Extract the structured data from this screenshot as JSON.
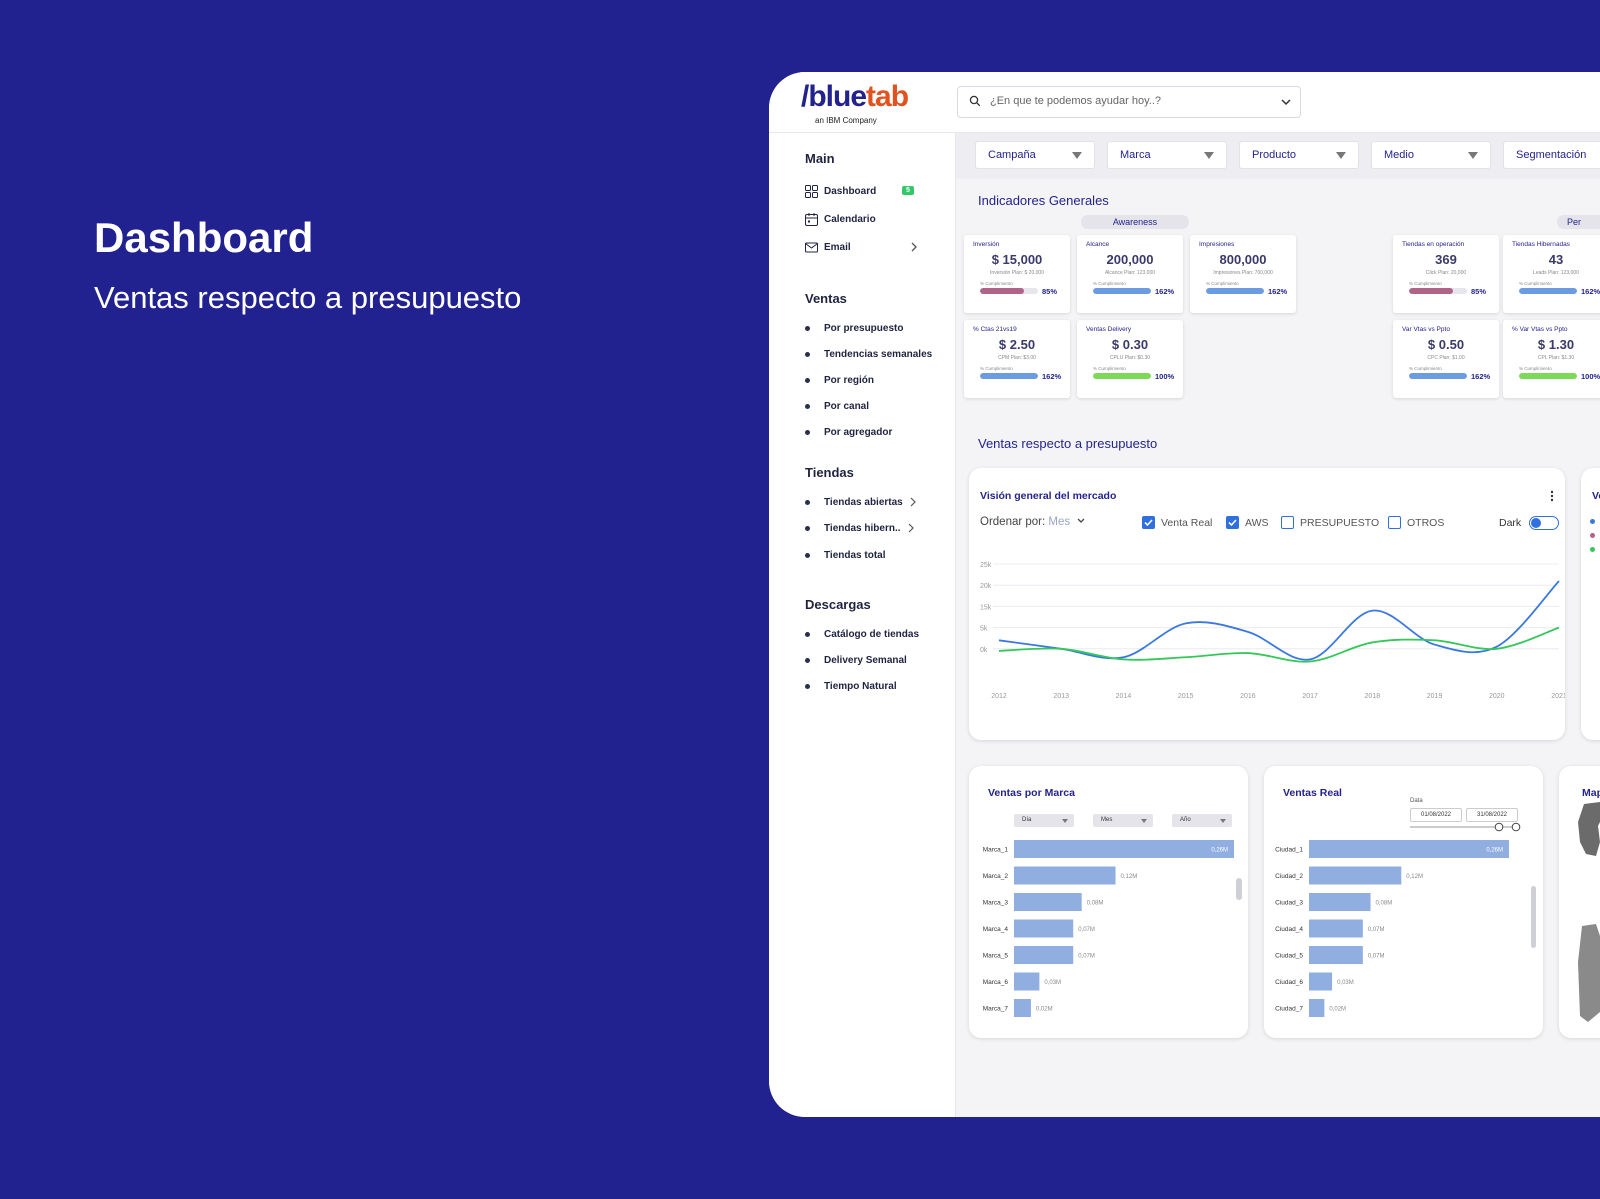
{
  "hero": {
    "title": "Dashboard",
    "subtitle": "Ventas respecto a presupuesto"
  },
  "logo": {
    "main_a": "/blue",
    "main_b": "tab",
    "sub": "an IBM Company"
  },
  "search": {
    "placeholder": "¿En que te podemos ayudar hoy..?"
  },
  "sidebar": {
    "main_title": "Main",
    "main_items": [
      {
        "label": "Dashboard",
        "badge": "5"
      },
      {
        "label": "Calendario"
      },
      {
        "label": "Email"
      }
    ],
    "ventas_title": "Ventas",
    "ventas_items": [
      "Por presupuesto",
      "Tendencias semanales",
      "Por región",
      "Por canal",
      "Por agregador"
    ],
    "tiendas_title": "Tiendas",
    "tiendas_items": [
      "Tiendas abiertas",
      "Tiendas hibern..",
      "Tiendas total"
    ],
    "descargas_title": "Descargas",
    "descargas_items": [
      "Catálogo de tiendas",
      "Delivery Semanal",
      "Tiempo Natural"
    ]
  },
  "filters": [
    "Campaña",
    "Marca",
    "Producto",
    "Medio",
    "Segmentación"
  ],
  "indicadores": {
    "title": "Indicadores Generales",
    "group_awareness": "Awareness",
    "group_per": "Per",
    "kpis": [
      {
        "label": "Inversión",
        "value": "$ 15,000",
        "plan": "Inversión Plan: $ 20,000",
        "cump": "% Cumplimiento",
        "pct": "85%",
        "progress": 0.75,
        "color": "#b0648a"
      },
      {
        "label": "Alcance",
        "value": "200,000",
        "plan": "Alcance Plan: 123,000",
        "cump": "% Cumplimiento",
        "pct": "162%",
        "progress": 1.0,
        "color": "#6b9be0"
      },
      {
        "label": "Impresiones",
        "value": "800,000",
        "plan": "Impresiones Plan: 700,000",
        "cump": "% Cumplimiento",
        "pct": "162%",
        "progress": 1.0,
        "color": "#6b9be0"
      },
      {
        "label": "Tiendas en operación",
        "value": "369",
        "plan": "Click Plan: 20,000",
        "cump": "% Cumplimiento",
        "pct": "85%",
        "progress": 0.75,
        "color": "#b0648a"
      },
      {
        "label": "Tiendas Hibernadas",
        "value": "43",
        "plan": "Leads Plan: 123,000",
        "cump": "% Cumplimiento",
        "pct": "162%",
        "progress": 1.0,
        "color": "#6b9be0"
      },
      {
        "label": "% Ctas 21vs19",
        "value": "$ 2.50",
        "plan": "CPM Plan: $3.00",
        "cump": "% Cumplimiento",
        "pct": "162%",
        "progress": 1.0,
        "color": "#6b9be0"
      },
      {
        "label": "Ventas Delivery",
        "value": "$ 0.30",
        "plan": "CPLU Plan: $0.30",
        "cump": "% Cumplimiento",
        "pct": "100%",
        "progress": 1.0,
        "color": "#7ed957"
      },
      {
        "label": "Var Vtas vs Ppto",
        "value": "$ 0.50",
        "plan": "CPC Plan: $1.00",
        "cump": "% Cumplimiento",
        "pct": "162%",
        "progress": 1.0,
        "color": "#6b9be0"
      },
      {
        "label": "% Var Vtas vs Ppto",
        "value": "$ 1.30",
        "plan": "CPL Plan: $1.30",
        "cump": "% Cumplimiento",
        "pct": "100%",
        "progress": 1.0,
        "color": "#7ed957"
      }
    ]
  },
  "ventas_section": {
    "title": "Ventas respecto a presupuesto"
  },
  "vision": {
    "title": "Visión general del mercado",
    "ordenar_label": "Ordenar por:",
    "ordenar_value": "Mes",
    "checks": [
      {
        "label": "Venta Real",
        "checked": true
      },
      {
        "label": "AWS",
        "checked": true
      },
      {
        "label": "PRESUPUESTO",
        "checked": false
      },
      {
        "label": "OTROS",
        "checked": false
      }
    ],
    "dark_label": "Dark",
    "right_card_peek": "Ve",
    "chart_data": {
      "type": "line",
      "x": [
        2012,
        2013,
        2014,
        2015,
        2016,
        2017,
        2018,
        2019,
        2020,
        2021
      ],
      "x_tick_labels": [
        "2012",
        "2013",
        "2014",
        "2015",
        "2016",
        "2017",
        "2018",
        "2019",
        "2020",
        "2021"
      ],
      "y_tick_labels": [
        "25k",
        "20k",
        "15k",
        "5k",
        "0k"
      ],
      "ylim": [
        0,
        25000
      ],
      "grid": true,
      "series": [
        {
          "color": "#3a78e0",
          "values": [
            7000,
            5000,
            3000,
            11000,
            9000,
            2500,
            14000,
            6000,
            5500,
            21000
          ]
        },
        {
          "color": "#34c759",
          "values": [
            4500,
            5000,
            2500,
            3000,
            4000,
            2000,
            6500,
            7000,
            5000,
            10000
          ]
        }
      ]
    }
  },
  "ventas_marca": {
    "title": "Ventas por Marca",
    "selects": [
      "Día",
      "Mes",
      "Año"
    ],
    "chart_data": {
      "type": "bar",
      "orientation": "horizontal",
      "categories": [
        "Marca_1",
        "Marca_2",
        "Marca_3",
        "Marca_4",
        "Marca_5",
        "Marca_6",
        "Marca_7"
      ],
      "values": [
        0.26,
        0.12,
        0.08,
        0.07,
        0.07,
        0.03,
        0.02
      ],
      "value_labels": [
        "0,26M",
        "0,12M",
        "0,08M",
        "0,07M",
        "0,07M",
        "0,03M",
        "0,02M"
      ],
      "color": "#90afe0"
    }
  },
  "ventas_real": {
    "title": "Ventas Real",
    "date_label": "Data",
    "date_from": "01/08/2022",
    "date_to": "31/08/2022",
    "chart_data": {
      "type": "bar",
      "orientation": "horizontal",
      "categories": [
        "Ciudad_1",
        "Ciudad_2",
        "Ciudad_3",
        "Ciudad_4",
        "Ciudad_5",
        "Ciudad_6",
        "Ciudad_7"
      ],
      "values": [
        0.26,
        0.12,
        0.08,
        0.07,
        0.07,
        0.03,
        0.02
      ],
      "value_labels": [
        "0,26M",
        "0,12M",
        "0,08M",
        "0,07M",
        "0,07M",
        "0,03M",
        "0,02M"
      ],
      "color": "#90afe0"
    }
  },
  "mapa": {
    "title": "Map"
  }
}
